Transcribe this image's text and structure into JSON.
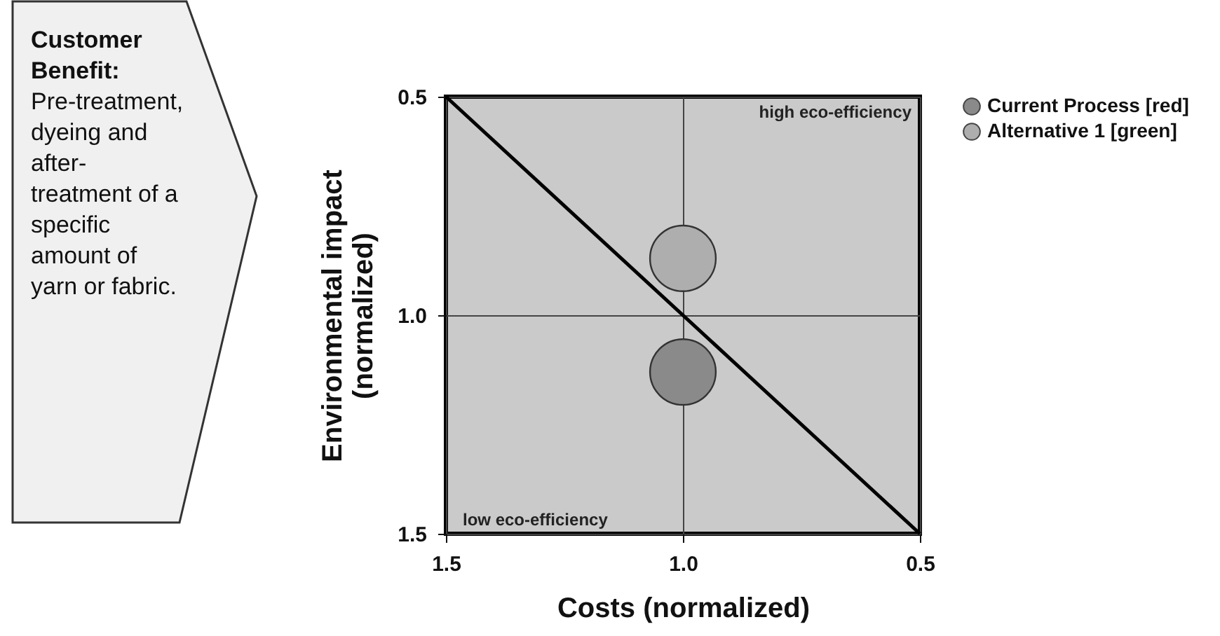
{
  "chart_data": {
    "type": "bubble",
    "xlabel": "Costs (normalized)",
    "ylabel": "Environmental impact\n(normalized)",
    "xlim": [
      1.5,
      0.5
    ],
    "xticks": [
      1.5,
      {
        "value": 1,
        "label": "1.0"
      },
      0.5
    ],
    "ylim": [
      1.5,
      0.5
    ],
    "yticks": [
      0.5,
      {
        "value": 1,
        "label": "1.0"
      },
      1.5
    ],
    "grid": true,
    "legend": "top right",
    "marker": "circle",
    "series": [
      {
        "name": "Current Process [red]",
        "color": "#8a8a8a",
        "x": [
          1.0
        ],
        "values": [
          1.13
        ],
        "sizes": [
          1
        ]
      },
      {
        "name": "Alternative 1 [green]",
        "color": "#aeaeae",
        "x": [
          1.0
        ],
        "values": [
          0.87
        ],
        "sizes": [
          1
        ]
      },
      {
        "type": "line",
        "marker": "none",
        "color": "#000000",
        "x": [
          1.5,
          0.5
        ],
        "values": [
          0.5,
          1.5
        ]
      }
    ],
    "annotations": [
      "high eco-efficiency",
      "low eco-efficiency",
      "Customer Benefit:",
      "Pre-treatment, dyeing and after-treatment of a specific amount of yarn or fabric."
    ]
  }
}
